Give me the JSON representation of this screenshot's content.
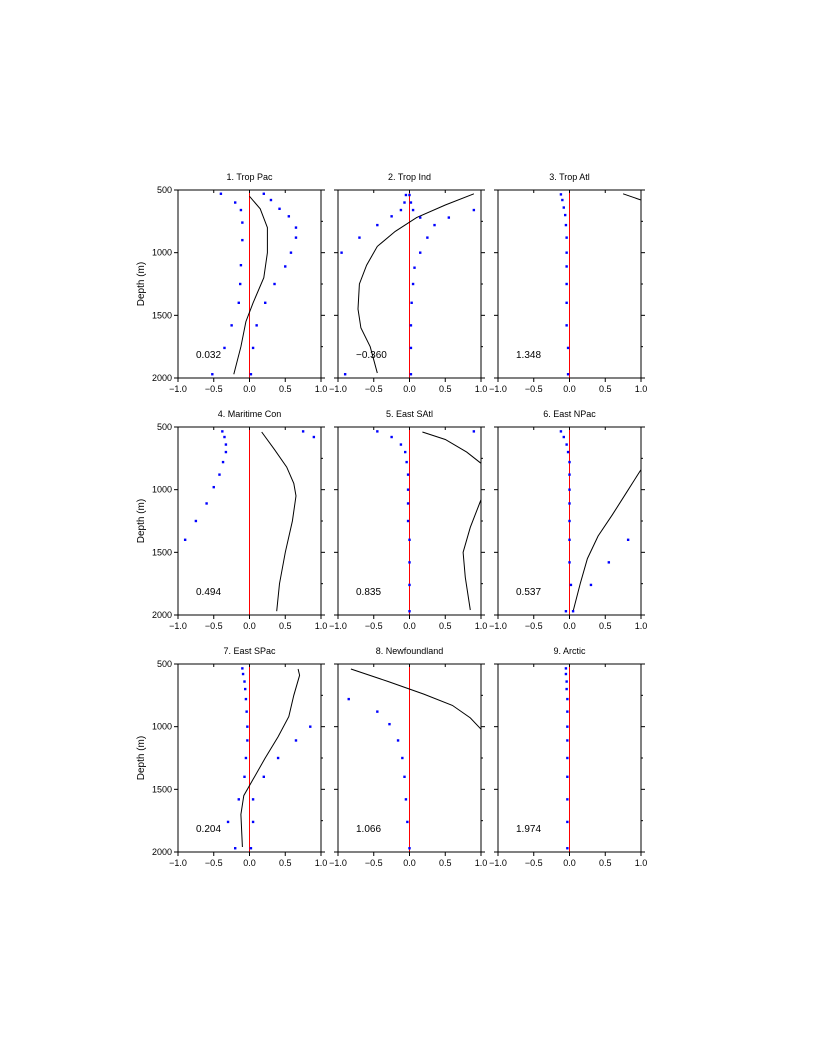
{
  "chart_data": [
    {
      "type": "scatter",
      "title": "1. Trop Pac",
      "ylabel": "Depth (m)",
      "value": "0.032",
      "xlim": [
        -1.0,
        1.0
      ],
      "ylim": [
        2000,
        500
      ],
      "xticks": [
        "−1.0",
        "−0.5",
        "0.0",
        "0.5",
        "1.0"
      ],
      "yticks": [
        "500",
        "1000",
        "1500",
        "2000"
      ],
      "red_line_x": 0.0,
      "line": [
        [
          0.0,
          550
        ],
        [
          0.15,
          650
        ],
        [
          0.25,
          800
        ],
        [
          0.25,
          1000
        ],
        [
          0.2,
          1200
        ],
        [
          0.05,
          1400
        ],
        [
          -0.05,
          1550
        ],
        [
          -0.12,
          1750
        ],
        [
          -0.22,
          1970
        ]
      ],
      "dots": [
        [
          -0.4,
          530
        ],
        [
          -0.2,
          600
        ],
        [
          -0.12,
          660
        ],
        [
          -0.1,
          760
        ],
        [
          -0.1,
          900
        ],
        [
          -0.12,
          1100
        ],
        [
          -0.13,
          1250
        ],
        [
          -0.15,
          1400
        ],
        [
          -0.25,
          1580
        ],
        [
          -0.35,
          1760
        ],
        [
          -0.52,
          1970
        ],
        [
          0.2,
          530
        ],
        [
          0.3,
          580
        ],
        [
          0.42,
          650
        ],
        [
          0.55,
          710
        ],
        [
          0.65,
          800
        ],
        [
          0.65,
          880
        ],
        [
          0.58,
          1000
        ],
        [
          0.5,
          1110
        ],
        [
          0.35,
          1250
        ],
        [
          0.22,
          1400
        ],
        [
          0.1,
          1580
        ],
        [
          0.05,
          1760
        ],
        [
          0.02,
          1970
        ]
      ]
    },
    {
      "type": "scatter",
      "title": "2. Trop Ind",
      "ylabel": "",
      "value": "−0.360",
      "xlim": [
        -1.0,
        1.0
      ],
      "ylim": [
        2000,
        500
      ],
      "xticks": [
        "−1.0",
        "−0.5",
        "0.0",
        "0.5",
        "1.0"
      ],
      "yticks": [
        "500",
        "1000",
        "1500",
        "2000"
      ],
      "red_line_x": 0.0,
      "line": [
        [
          0.9,
          530
        ],
        [
          0.5,
          620
        ],
        [
          0.1,
          720
        ],
        [
          -0.2,
          830
        ],
        [
          -0.45,
          950
        ],
        [
          -0.6,
          1100
        ],
        [
          -0.7,
          1250
        ],
        [
          -0.72,
          1450
        ],
        [
          -0.68,
          1600
        ],
        [
          -0.55,
          1750
        ],
        [
          -0.45,
          1960
        ]
      ],
      "dots": [
        [
          -0.05,
          540
        ],
        [
          -0.07,
          600
        ],
        [
          -0.12,
          660
        ],
        [
          -0.25,
          710
        ],
        [
          -0.45,
          780
        ],
        [
          -0.7,
          880
        ],
        [
          -0.95,
          1000
        ],
        [
          -0.9,
          1970
        ],
        [
          0.0,
          540
        ],
        [
          0.02,
          600
        ],
        [
          0.05,
          660
        ],
        [
          0.15,
          720
        ],
        [
          0.35,
          780
        ],
        [
          0.55,
          720
        ],
        [
          0.9,
          660
        ],
        [
          0.25,
          880
        ],
        [
          0.15,
          1000
        ],
        [
          0.07,
          1120
        ],
        [
          0.05,
          1250
        ],
        [
          0.03,
          1400
        ],
        [
          0.02,
          1580
        ],
        [
          0.02,
          1760
        ],
        [
          0.02,
          1970
        ]
      ]
    },
    {
      "type": "scatter",
      "title": "3. Trop Atl",
      "ylabel": "",
      "value": "1.348",
      "xlim": [
        -1.0,
        1.0
      ],
      "ylim": [
        2000,
        500
      ],
      "xticks": [
        "−1.0",
        "−0.5",
        "0.0",
        "0.5",
        "1.0"
      ],
      "yticks": [
        "500",
        "1000",
        "1500",
        "2000"
      ],
      "red_line_x": 0.0,
      "line": [
        [
          0.75,
          530
        ],
        [
          1.0,
          580
        ]
      ],
      "dots": [
        [
          -0.12,
          535
        ],
        [
          -0.1,
          580
        ],
        [
          -0.08,
          640
        ],
        [
          -0.06,
          700
        ],
        [
          -0.05,
          780
        ],
        [
          -0.04,
          880
        ],
        [
          -0.04,
          1000
        ],
        [
          -0.04,
          1110
        ],
        [
          -0.04,
          1250
        ],
        [
          -0.04,
          1400
        ],
        [
          -0.04,
          1580
        ],
        [
          -0.02,
          1760
        ],
        [
          -0.02,
          1970
        ]
      ]
    },
    {
      "type": "scatter",
      "title": "4. Maritime Con",
      "ylabel": "Depth (m)",
      "value": "0.494",
      "xlim": [
        -1.0,
        1.0
      ],
      "ylim": [
        2000,
        500
      ],
      "xticks": [
        "−1.0",
        "−0.5",
        "0.0",
        "0.5",
        "1.0"
      ],
      "yticks": [
        "500",
        "1000",
        "1500",
        "2000"
      ],
      "red_line_x": 0.0,
      "line": [
        [
          0.17,
          540
        ],
        [
          0.35,
          680
        ],
        [
          0.52,
          820
        ],
        [
          0.62,
          950
        ],
        [
          0.65,
          1050
        ],
        [
          0.6,
          1250
        ],
        [
          0.5,
          1500
        ],
        [
          0.42,
          1750
        ],
        [
          0.38,
          1970
        ]
      ],
      "dots": [
        [
          -0.38,
          535
        ],
        [
          -0.35,
          580
        ],
        [
          -0.33,
          640
        ],
        [
          -0.33,
          700
        ],
        [
          -0.37,
          780
        ],
        [
          -0.42,
          880
        ],
        [
          -0.5,
          980
        ],
        [
          -0.6,
          1110
        ],
        [
          -0.75,
          1250
        ],
        [
          -0.9,
          1400
        ],
        [
          0.75,
          535
        ],
        [
          0.9,
          580
        ]
      ]
    },
    {
      "type": "scatter",
      "title": "5. East SAtl",
      "ylabel": "",
      "value": "0.835",
      "xlim": [
        -1.0,
        1.0
      ],
      "ylim": [
        2000,
        500
      ],
      "xticks": [
        "−1.0",
        "−0.5",
        "0.0",
        "0.5",
        "1.0"
      ],
      "yticks": [
        "500",
        "1000",
        "1500",
        "2000"
      ],
      "red_line_x": 0.0,
      "line": [
        [
          0.18,
          540
        ],
        [
          0.5,
          600
        ],
        [
          0.8,
          700
        ],
        [
          1.0,
          790
        ],
        [
          1.0,
          1080
        ],
        [
          0.85,
          1300
        ],
        [
          0.75,
          1500
        ],
        [
          0.78,
          1700
        ],
        [
          0.85,
          1960
        ]
      ],
      "dots": [
        [
          -0.45,
          535
        ],
        [
          -0.25,
          580
        ],
        [
          -0.12,
          640
        ],
        [
          -0.06,
          700
        ],
        [
          -0.04,
          780
        ],
        [
          -0.02,
          880
        ],
        [
          -0.02,
          1000
        ],
        [
          -0.02,
          1110
        ],
        [
          -0.02,
          1250
        ],
        [
          0.0,
          1400
        ],
        [
          0.0,
          1580
        ],
        [
          0.0,
          1760
        ],
        [
          0.0,
          1970
        ],
        [
          0.9,
          535
        ]
      ]
    },
    {
      "type": "scatter",
      "title": "6. East NPac",
      "ylabel": "",
      "value": "0.537",
      "xlim": [
        -1.0,
        1.0
      ],
      "ylim": [
        2000,
        500
      ],
      "xticks": [
        "−1.0",
        "−0.5",
        "0.0",
        "0.5",
        "1.0"
      ],
      "yticks": [
        "500",
        "1000",
        "1500",
        "2000"
      ],
      "red_line_x": 0.0,
      "line": [
        [
          1.0,
          840
        ],
        [
          0.8,
          1020
        ],
        [
          0.6,
          1200
        ],
        [
          0.4,
          1370
        ],
        [
          0.25,
          1550
        ],
        [
          0.15,
          1750
        ],
        [
          0.05,
          1970
        ]
      ],
      "dots": [
        [
          -0.12,
          535
        ],
        [
          -0.08,
          580
        ],
        [
          -0.04,
          640
        ],
        [
          -0.02,
          700
        ],
        [
          0.0,
          780
        ],
        [
          0.0,
          880
        ],
        [
          0.0,
          1000
        ],
        [
          0.0,
          1110
        ],
        [
          0.0,
          1250
        ],
        [
          0.0,
          1400
        ],
        [
          0.0,
          1580
        ],
        [
          0.02,
          1760
        ],
        [
          -0.05,
          1970
        ],
        [
          0.05,
          1970
        ],
        [
          0.3,
          1760
        ],
        [
          0.55,
          1580
        ],
        [
          0.82,
          1400
        ]
      ]
    },
    {
      "type": "scatter",
      "title": "7. East SPac",
      "ylabel": "Depth (m)",
      "value": "0.204",
      "xlim": [
        -1.0,
        1.0
      ],
      "ylim": [
        2000,
        500
      ],
      "xticks": [
        "−1.0",
        "−0.5",
        "0.0",
        "0.5",
        "1.0"
      ],
      "yticks": [
        "500",
        "1000",
        "1500",
        "2000"
      ],
      "red_line_x": 0.0,
      "line": [
        [
          0.68,
          540
        ],
        [
          0.7,
          590
        ],
        [
          0.62,
          750
        ],
        [
          0.55,
          920
        ],
        [
          0.4,
          1080
        ],
        [
          0.22,
          1250
        ],
        [
          0.05,
          1420
        ],
        [
          -0.08,
          1550
        ],
        [
          -0.12,
          1700
        ],
        [
          -0.1,
          1960
        ]
      ],
      "dots": [
        [
          -0.1,
          535
        ],
        [
          -0.09,
          580
        ],
        [
          -0.07,
          640
        ],
        [
          -0.06,
          700
        ],
        [
          -0.05,
          780
        ],
        [
          -0.04,
          880
        ],
        [
          -0.03,
          1000
        ],
        [
          -0.03,
          1110
        ],
        [
          -0.05,
          1250
        ],
        [
          -0.07,
          1400
        ],
        [
          -0.15,
          1580
        ],
        [
          -0.3,
          1760
        ],
        [
          -0.2,
          1970
        ],
        [
          0.85,
          1000
        ],
        [
          0.65,
          1110
        ],
        [
          0.4,
          1250
        ],
        [
          0.2,
          1400
        ],
        [
          0.05,
          1580
        ],
        [
          0.05,
          1760
        ],
        [
          0.02,
          1970
        ]
      ]
    },
    {
      "type": "scatter",
      "title": "8. Newfoundland",
      "ylabel": "",
      "value": "1.066",
      "xlim": [
        -1.0,
        1.0
      ],
      "ylim": [
        2000,
        500
      ],
      "xticks": [
        "−1.0",
        "−0.5",
        "0.0",
        "0.5",
        "1.0"
      ],
      "yticks": [
        "500",
        "1000",
        "1500",
        "2000"
      ],
      "red_line_x": 0.0,
      "line": [
        [
          -0.82,
          540
        ],
        [
          -0.3,
          640
        ],
        [
          0.2,
          740
        ],
        [
          0.6,
          830
        ],
        [
          0.85,
          930
        ],
        [
          1.0,
          1020
        ]
      ],
      "dots": [
        [
          -0.85,
          780
        ],
        [
          -0.45,
          880
        ],
        [
          -0.28,
          980
        ],
        [
          -0.16,
          1110
        ],
        [
          -0.1,
          1250
        ],
        [
          -0.07,
          1400
        ],
        [
          -0.05,
          1580
        ],
        [
          -0.03,
          1760
        ],
        [
          0.0,
          1970
        ]
      ]
    },
    {
      "type": "scatter",
      "title": "9. Arctic",
      "ylabel": "",
      "value": "1.974",
      "xlim": [
        -1.0,
        1.0
      ],
      "ylim": [
        2000,
        500
      ],
      "xticks": [
        "−1.0",
        "−0.5",
        "0.0",
        "0.5",
        "1.0"
      ],
      "yticks": [
        "500",
        "1000",
        "1500",
        "2000"
      ],
      "red_line_x": 0.0,
      "line": [],
      "dots": [
        [
          -0.05,
          535
        ],
        [
          -0.05,
          580
        ],
        [
          -0.04,
          640
        ],
        [
          -0.04,
          700
        ],
        [
          -0.03,
          780
        ],
        [
          -0.03,
          880
        ],
        [
          -0.03,
          1000
        ],
        [
          -0.03,
          1110
        ],
        [
          -0.03,
          1250
        ],
        [
          -0.03,
          1400
        ],
        [
          -0.03,
          1580
        ],
        [
          -0.03,
          1760
        ],
        [
          -0.03,
          1970
        ]
      ]
    }
  ]
}
